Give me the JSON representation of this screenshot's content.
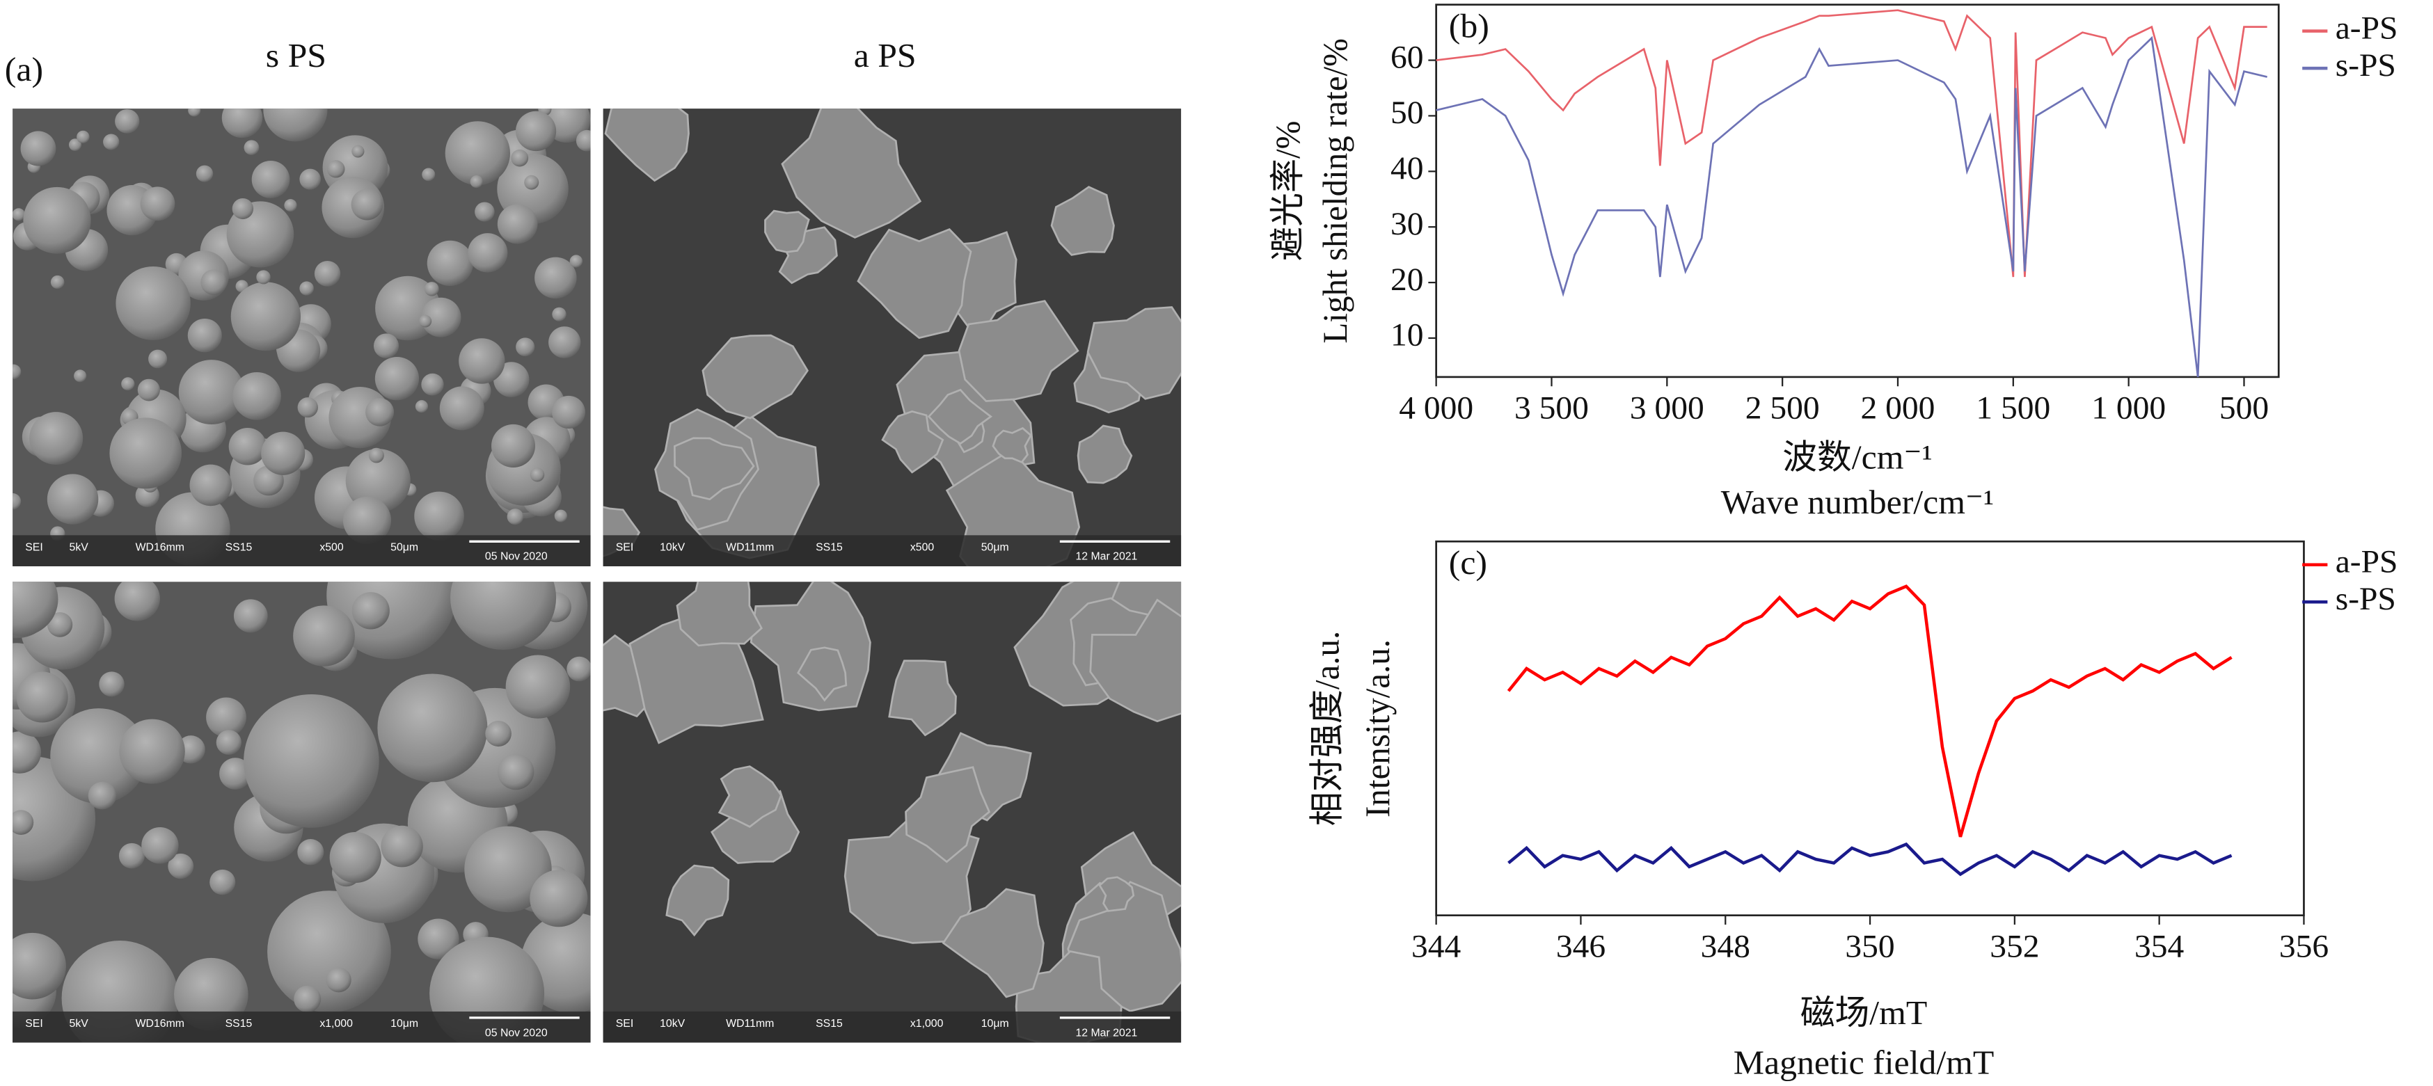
{
  "panel_a": {
    "label": "(a)",
    "columns": [
      "s PS",
      "a PS"
    ],
    "images": [
      {
        "info": [
          "SEI",
          "5kV",
          "WD16mm",
          "SS15",
          "x500",
          "50μm",
          "05 Nov 2020"
        ]
      },
      {
        "info": [
          "SEI",
          "10kV",
          "WD11mm",
          "SS15",
          "x500",
          "50μm",
          "12 Mar 2021"
        ]
      },
      {
        "info": [
          "SEI",
          "5kV",
          "WD16mm",
          "SS15",
          "x1,000",
          "10μm",
          "05 Nov 2020"
        ]
      },
      {
        "info": [
          "SEI",
          "10kV",
          "WD11mm",
          "SS15",
          "x1,000",
          "10μm",
          "12 Mar 2021"
        ]
      }
    ]
  },
  "chart_data": [
    {
      "type": "line",
      "label": "(b)",
      "ylabel_cn": "避光率/%",
      "ylabel": "Light shielding rate/%",
      "xlabel_cn": "波数/cm⁻¹",
      "xlabel": "Wave number/cm⁻¹",
      "xlim": [
        4000,
        350
      ],
      "ylim": [
        3,
        70
      ],
      "xticks": [
        {
          "value": 4000,
          "label": "4 000"
        },
        {
          "value": 3500,
          "label": "3 500"
        },
        {
          "value": 3000,
          "label": "3 000"
        },
        {
          "value": 2500,
          "label": "2 500"
        },
        {
          "value": 2000,
          "label": "2 000"
        },
        {
          "value": 1500,
          "label": "1 500"
        },
        {
          "value": 1000,
          "label": "1 000"
        },
        500
      ],
      "yticks": [
        10,
        20,
        30,
        40,
        50,
        60
      ],
      "x": [
        4000,
        3800,
        3700,
        3600,
        3500,
        3450,
        3400,
        3300,
        3100,
        3050,
        3030,
        3000,
        2920,
        2850,
        2800,
        2600,
        2400,
        2340,
        2300,
        2000,
        1900,
        1800,
        1750,
        1700,
        1650,
        1600,
        1500,
        1490,
        1450,
        1400,
        1200,
        1100,
        1070,
        1000,
        900,
        760,
        700,
        650,
        540,
        500,
        400
      ],
      "series": [
        {
          "name": "a-PS",
          "color": "#e8626a",
          "values": [
            60,
            61,
            62,
            58,
            53,
            51,
            54,
            57,
            62,
            55,
            41,
            60,
            45,
            47,
            60,
            64,
            67,
            68,
            68,
            69,
            68,
            67,
            62,
            68,
            66,
            64,
            21,
            65,
            21,
            60,
            65,
            64,
            61,
            64,
            66,
            45,
            64,
            66,
            55,
            66,
            66
          ]
        },
        {
          "name": "s-PS",
          "color": "#6d72b5",
          "values": [
            51,
            53,
            50,
            42,
            25,
            18,
            25,
            33,
            33,
            30,
            21,
            34,
            22,
            28,
            45,
            52,
            57,
            62,
            59,
            60,
            58,
            56,
            53,
            40,
            45,
            50,
            22,
            55,
            22,
            50,
            55,
            48,
            52,
            60,
            64,
            24,
            3,
            58,
            52,
            58,
            57
          ]
        }
      ]
    },
    {
      "type": "line",
      "label": "(c)",
      "ylabel_cn": "相对强度/a.u.",
      "ylabel": "Intensity/a.u.",
      "xlabel_cn": "磁场/mT",
      "xlabel": "Magnetic field/mT",
      "xlim": [
        344,
        356
      ],
      "ylim": [
        0,
        100
      ],
      "xticks": [
        344,
        346,
        348,
        350,
        352,
        354,
        356
      ],
      "x": [
        345,
        345.25,
        345.5,
        345.75,
        346,
        346.25,
        346.5,
        346.75,
        347,
        347.25,
        347.5,
        347.75,
        348,
        348.25,
        348.5,
        348.75,
        349,
        349.25,
        349.5,
        349.75,
        350,
        350.25,
        350.5,
        350.75,
        351,
        351.25,
        351.5,
        351.75,
        352,
        352.25,
        352.5,
        352.75,
        353,
        353.25,
        353.5,
        353.75,
        354,
        354.25,
        354.5,
        354.75,
        355
      ],
      "series": [
        {
          "name": "a-PS",
          "color": "#ff0000",
          "values": [
            60,
            66,
            63,
            65,
            62,
            66,
            64,
            68,
            65,
            69,
            67,
            72,
            74,
            78,
            80,
            85,
            80,
            82,
            79,
            84,
            82,
            86,
            88,
            83,
            45,
            21,
            38,
            52,
            58,
            60,
            63,
            61,
            64,
            66,
            63,
            67,
            65,
            68,
            70,
            66,
            69
          ]
        },
        {
          "name": "s-PS",
          "color": "#1a1a8c",
          "values": [
            14,
            18,
            13,
            16,
            15,
            17,
            12,
            16,
            14,
            18,
            13,
            15,
            17,
            14,
            16,
            12,
            17,
            15,
            14,
            18,
            16,
            17,
            19,
            14,
            15,
            11,
            14,
            16,
            13,
            17,
            15,
            12,
            16,
            14,
            17,
            13,
            16,
            15,
            17,
            14,
            16
          ]
        }
      ]
    }
  ]
}
